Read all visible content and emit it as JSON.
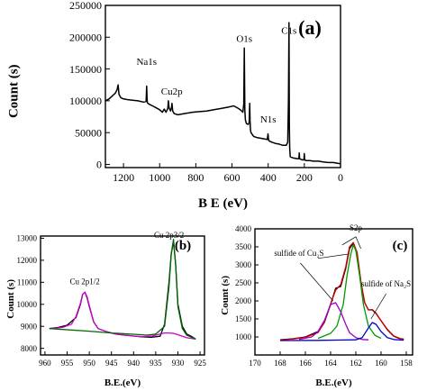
{
  "chart_data": [
    {
      "type": "line",
      "panel_label": "(a)",
      "xlabel": "B E (eV)",
      "ylabel": "Count (s)",
      "xlim": [
        1300,
        0
      ],
      "ylim": [
        -5000,
        250000
      ],
      "x_ticks": [
        1200,
        1000,
        800,
        600,
        400,
        200,
        0
      ],
      "y_ticks": [
        0,
        50000,
        100000,
        150000,
        200000,
        250000
      ],
      "grid": false,
      "annotations": [
        {
          "text": "Na1s",
          "x": 1072,
          "y": 148000
        },
        {
          "text": "Cu2p",
          "x": 933,
          "y": 103000
        },
        {
          "text": "O1s",
          "x": 532,
          "y": 184000
        },
        {
          "text": "C1s",
          "x": 285,
          "y": 198000
        },
        {
          "text": "N1s",
          "x": 400,
          "y": 57000
        }
      ],
      "series": [
        {
          "x": [
            1300,
            1280,
            1260,
            1245,
            1235,
            1230,
            1225,
            1215,
            1200,
            1180,
            1150,
            1120,
            1090,
            1075,
            1072,
            1070,
            1068,
            1060,
            1040,
            1020,
            1000,
            985,
            975,
            965,
            955,
            952,
            948,
            940,
            934,
            932,
            928,
            920,
            900,
            860,
            820,
            780,
            740,
            700,
            660,
            620,
            590,
            565,
            550,
            540,
            535,
            532,
            529,
            526,
            520,
            510,
            505,
            502,
            500,
            498,
            495,
            480,
            460,
            440,
            420,
            405,
            401,
            398,
            395,
            380,
            360,
            340,
            320,
            300,
            292,
            288,
            285,
            283,
            281,
            278,
            270,
            260,
            240,
            230,
            228,
            226,
            220,
            210,
            202,
            200,
            198,
            190,
            170,
            150,
            120,
            100,
            70,
            40,
            20,
            0
          ],
          "y": [
            100000,
            103000,
            108000,
            112000,
            118000,
            125000,
            110000,
            105000,
            103000,
            102000,
            101000,
            100000,
            98000,
            99000,
            123000,
            105000,
            97000,
            95000,
            92000,
            89000,
            86000,
            82000,
            87000,
            82000,
            88000,
            100000,
            89000,
            84000,
            90000,
            96000,
            84000,
            80000,
            78000,
            80000,
            82000,
            83000,
            84000,
            86000,
            88000,
            90000,
            92000,
            88000,
            85000,
            82000,
            95000,
            183000,
            85000,
            70000,
            64000,
            63000,
            66000,
            96000,
            68000,
            55000,
            50000,
            44000,
            42000,
            41000,
            40000,
            39000,
            48000,
            39000,
            37000,
            35000,
            33000,
            32000,
            30000,
            30000,
            35000,
            100000,
            223000,
            60000,
            25000,
            12000,
            11000,
            10000,
            9000,
            9000,
            18000,
            9000,
            8000,
            7000,
            7000,
            17000,
            7000,
            6000,
            6000,
            5000,
            5000,
            4000,
            3000,
            3000,
            2000,
            1000
          ]
        }
      ]
    },
    {
      "type": "line",
      "panel_label": "(b)",
      "xlabel": "B.E.(eV)",
      "ylabel": "Count (s)",
      "xlim": [
        961,
        924
      ],
      "ylim": [
        7700,
        13100
      ],
      "x_ticks": [
        960,
        955,
        950,
        945,
        940,
        935,
        930,
        925
      ],
      "y_ticks": [
        8000,
        9000,
        10000,
        11000,
        12000,
        13000
      ],
      "grid": false,
      "annotations": [
        {
          "text": "Cu 2p1/2",
          "x": 951,
          "y": 10700
        },
        {
          "text": "Cu 2p3/2",
          "x": 932,
          "y": 12850
        }
      ],
      "series": [
        {
          "color": "#000000",
          "x": [
            959,
            957,
            955,
            953,
            952,
            951.5,
            951,
            950.5,
            950,
            949,
            948,
            946,
            944,
            942,
            940,
            938,
            936,
            934,
            933,
            932,
            931.5,
            931,
            930.5,
            930,
            929,
            928,
            927,
            926
          ],
          "y": [
            8900,
            8950,
            9050,
            9400,
            10000,
            10450,
            10550,
            10300,
            9900,
            9200,
            8900,
            8750,
            8650,
            8600,
            8560,
            8520,
            8500,
            8550,
            9100,
            11000,
            12300,
            12850,
            11800,
            10000,
            9000,
            8650,
            8550,
            8420
          ]
        },
        {
          "color": "#cc00cc",
          "x": [
            959,
            956,
            954,
            953,
            952,
            951.5,
            951,
            950.5,
            950,
            949,
            948,
            946,
            944,
            942,
            940,
            938,
            936,
            934,
            933,
            932,
            931,
            930,
            929,
            928,
            926
          ],
          "y": [
            8900,
            8950,
            9100,
            9450,
            10050,
            10450,
            10550,
            10350,
            9950,
            9200,
            8900,
            8750,
            8650,
            8600,
            8560,
            8530,
            8550,
            8650,
            8700,
            8700,
            8680,
            8620,
            8550,
            8480,
            8420
          ]
        },
        {
          "color": "#006600",
          "x": [
            959,
            950,
            945,
            940,
            937,
            935,
            933,
            932,
            931.5,
            931,
            930.5,
            930,
            929,
            928,
            926
          ],
          "y": [
            8900,
            8780,
            8700,
            8640,
            8600,
            8650,
            9000,
            10800,
            12300,
            12950,
            11800,
            9900,
            8900,
            8600,
            8420
          ]
        }
      ]
    },
    {
      "type": "line",
      "panel_label": "(c)",
      "xlabel": "B.E.(eV)",
      "ylabel": "Count (s)",
      "xlim": [
        170,
        157.5
      ],
      "ylim": [
        500,
        4000
      ],
      "x_ticks": [
        170,
        168,
        166,
        164,
        162,
        160,
        158
      ],
      "y_ticks": [
        1000,
        1500,
        2000,
        2500,
        3000,
        3500,
        4000
      ],
      "grid": false,
      "annotations": [
        {
          "text": "S2p",
          "x": 162,
          "y": 3850
        },
        {
          "text": "sulfide of Cu₂S",
          "x": 166.5,
          "y": 3150
        },
        {
          "text": "sulfide of Na₂S",
          "x": 159.6,
          "y": 2300
        }
      ],
      "series": [
        {
          "color": "#000000",
          "x": [
            168,
            167,
            166,
            165,
            164.5,
            164,
            163.6,
            163.2,
            162.8,
            162.5,
            162.2,
            161.9,
            161.6,
            161.3,
            161,
            160.7,
            160.4,
            160,
            159.5,
            159,
            158.5,
            158.2
          ],
          "y": [
            920,
            950,
            1000,
            1150,
            1400,
            1900,
            2350,
            2400,
            2900,
            3450,
            3600,
            3300,
            2500,
            1950,
            1750,
            1750,
            1650,
            1450,
            1200,
            1020,
            950,
            940
          ]
        },
        {
          "color": "#cc0000",
          "x": [
            168,
            167,
            166,
            165,
            164.5,
            164,
            163.6,
            163.2,
            162.8,
            162.5,
            162.2,
            161.9,
            161.6,
            161.3,
            161,
            160.7,
            160.4,
            160,
            159.5,
            159,
            158.5,
            158.2
          ],
          "y": [
            920,
            940,
            990,
            1120,
            1400,
            1920,
            2300,
            2450,
            2950,
            3500,
            3620,
            3350,
            2550,
            1950,
            1750,
            1760,
            1660,
            1450,
            1210,
            1030,
            960,
            940
          ]
        },
        {
          "color": "#009900",
          "x": [
            165,
            164,
            163.5,
            163,
            162.7,
            162.4,
            162.2,
            162,
            161.7,
            161.4,
            161,
            160.5,
            160
          ],
          "y": [
            960,
            1100,
            1300,
            1900,
            2700,
            3300,
            3550,
            3400,
            2700,
            1900,
            1300,
            1050,
            960
          ]
        },
        {
          "color": "#9900cc",
          "x": [
            166.5,
            165.5,
            165,
            164.5,
            164,
            163.6,
            163.2,
            162.8,
            162.5,
            162,
            161.5,
            161
          ],
          "y": [
            930,
            1000,
            1150,
            1450,
            1900,
            1950,
            1700,
            1350,
            1120,
            980,
            930,
            920
          ]
        },
        {
          "color": "#0000cc",
          "x": [
            168,
            165,
            162,
            161.5,
            161,
            160.7,
            160.4,
            160,
            159.5,
            159,
            158.5,
            158.2
          ],
          "y": [
            900,
            905,
            920,
            980,
            1250,
            1400,
            1350,
            1150,
            980,
            930,
            915,
            910
          ]
        }
      ]
    }
  ]
}
